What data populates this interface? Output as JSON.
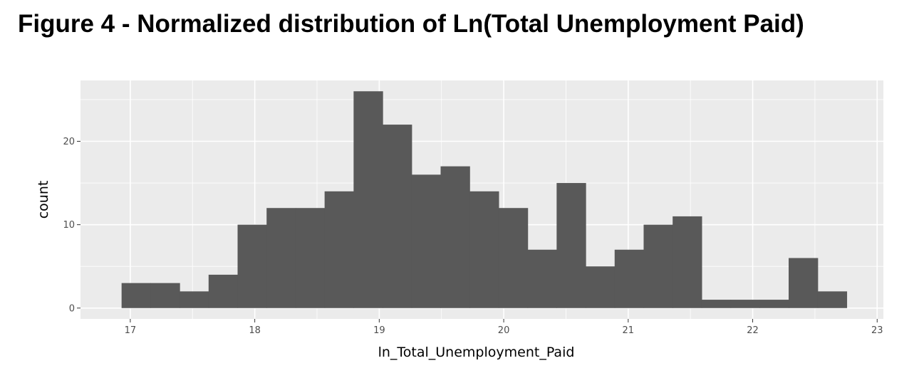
{
  "figure": {
    "title": "Figure 4 - Normalized distribution of Ln(Total Unemployment Paid)"
  },
  "chart_data": {
    "type": "bar",
    "subtype": "histogram",
    "title": "",
    "xlabel": "ln_Total_Unemployment_Paid",
    "ylabel": "count",
    "xlim": [
      16.6,
      23.05
    ],
    "ylim": [
      -1.3,
      27.3
    ],
    "x_ticks": [
      17,
      18,
      19,
      20,
      21,
      22,
      23
    ],
    "y_ticks": [
      0,
      10,
      20
    ],
    "bin_start": 16.93,
    "bin_width": 0.233,
    "values": [
      3,
      3,
      2,
      4,
      10,
      12,
      12,
      14,
      26,
      22,
      16,
      17,
      14,
      12,
      7,
      15,
      5,
      7,
      10,
      11,
      1,
      1,
      1,
      6,
      2
    ],
    "panel_color": "#ebebeb",
    "grid_color": "#ffffff",
    "bar_color": "#595959",
    "grid": true,
    "legend": "none"
  }
}
